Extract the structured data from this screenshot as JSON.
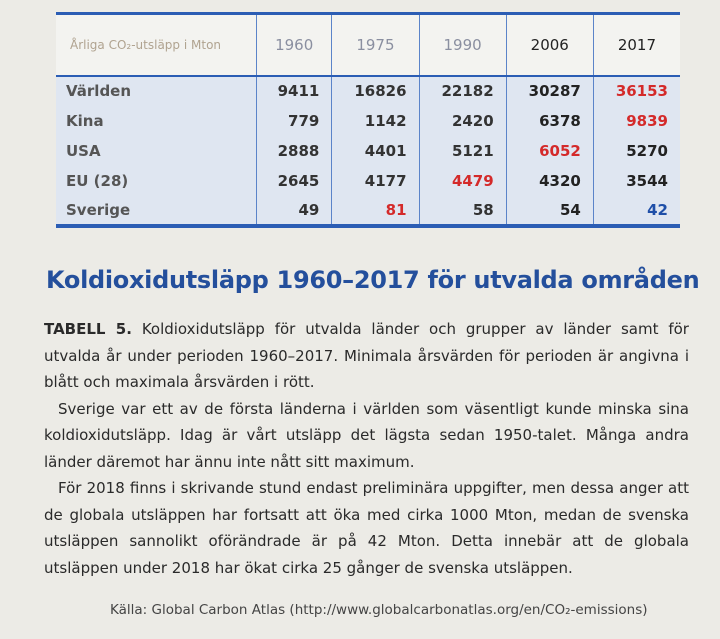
{
  "table": {
    "corner": "Årliga CO₂-utsläpp i Mton",
    "columns": [
      "1960",
      "1975",
      "1990",
      "2006",
      "2017"
    ],
    "rows": [
      {
        "label": "Världen",
        "values": [
          9411,
          16826,
          22182,
          30287,
          36153
        ],
        "colors": [
          "#333",
          "#333",
          "#333",
          "#222",
          "#d42a2a"
        ]
      },
      {
        "label": "Kina",
        "values": [
          779,
          1142,
          2420,
          6378,
          9839
        ],
        "colors": [
          "#333",
          "#333",
          "#333",
          "#222",
          "#d42a2a"
        ]
      },
      {
        "label": "USA",
        "values": [
          2888,
          4401,
          5121,
          6052,
          5270
        ],
        "colors": [
          "#333",
          "#333",
          "#333",
          "#d42a2a",
          "#222"
        ]
      },
      {
        "label": "EU (28)",
        "values": [
          2645,
          4177,
          4479,
          4320,
          3544
        ],
        "colors": [
          "#333",
          "#333",
          "#d42a2a",
          "#222",
          "#222"
        ]
      },
      {
        "label": "Sverige",
        "values": [
          49,
          81,
          58,
          54,
          42
        ],
        "colors": [
          "#333",
          "#d42a2a",
          "#333",
          "#222",
          "#1f4fa8"
        ]
      }
    ]
  },
  "heading": "Koldioxidutsläpp 1960–2017 för utvalda områden",
  "caption": {
    "label": "TABELL 5.",
    "text": "Koldioxidutsläpp för utvalda länder och grupper av länder samt för utvalda år under perioden 1960–2017. Minimala årsvärden för perioden är angivna i blått och maximala årsvärden i rött."
  },
  "paragraphs": [
    "Sverige var ett av de första länderna i världen som väsentligt kunde minska sina koldioxidutsläpp. Idag är vårt utsläpp det lägsta sedan 1950-talet. Många andra länder däremot har ännu inte nått sitt maximum.",
    "För 2018 finns i skrivande stund endast preliminära uppgifter, men dessa anger att de globala utsläppen har fortsatt att öka med cirka 1000 Mton, medan de svenska utsläppen sannolikt oförändrade är på 42 Mton. Detta innebär att de globala utsläppen under 2018 har ökat cirka 25 gånger de svenska utsläppen."
  ],
  "source": "Källa: Global Carbon Atlas (http://www.globalcarbonatlas.org/en/CO₂-emissions)"
}
